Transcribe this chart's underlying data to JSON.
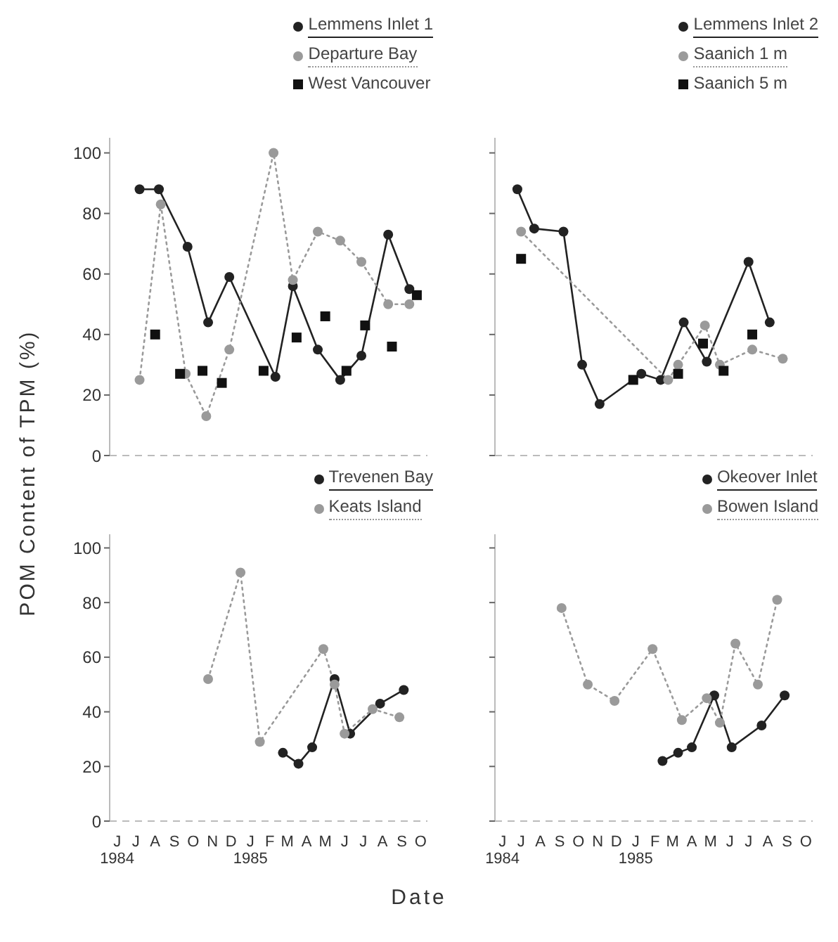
{
  "chart_data": [
    {
      "type": "line",
      "ylabel": "POM Content of TPM (%)",
      "xlim": [
        "1984-05-20",
        "1985-10-12"
      ],
      "ylim": [
        0,
        105
      ],
      "yticks": [
        0,
        20,
        40,
        60,
        80,
        100
      ],
      "tick_labels": "y",
      "legend": "top right",
      "grid": false,
      "series": [
        {
          "name": "Lemmens Inlet 1",
          "type": "line",
          "color": "#222222",
          "marker": "circle",
          "line_style": "solid",
          "x": [
            "1984-07-07",
            "1984-08-07",
            "1984-09-22",
            "1984-10-25",
            "1984-11-28",
            "1985-02-10",
            "1985-03-10",
            "1985-04-19",
            "1985-05-25",
            "1985-06-28",
            "1985-08-10",
            "1985-09-13"
          ],
          "values": [
            88,
            88,
            69,
            44,
            59,
            26,
            56,
            35,
            25,
            33,
            73,
            55
          ]
        },
        {
          "name": "Departure Bay",
          "type": "line",
          "color": "#9a9a9a",
          "marker": "circle",
          "line_style": "dotted",
          "x": [
            "1984-07-07",
            "1984-08-10",
            "1984-09-19",
            "1984-10-22",
            "1984-11-28",
            "1985-02-07",
            "1985-03-10",
            "1985-04-19",
            "1985-05-25",
            "1985-06-28",
            "1985-08-10",
            "1985-09-13"
          ],
          "values": [
            25,
            83,
            27,
            13,
            35,
            100,
            58,
            74,
            71,
            64,
            50,
            50
          ]
        },
        {
          "name": "West Vancouver",
          "type": "scatter",
          "color": "#111111",
          "marker": "square",
          "x": [
            "1984-08-01",
            "1984-09-10",
            "1984-10-16",
            "1984-11-16",
            "1985-01-22",
            "1985-03-16",
            "1985-05-01",
            "1985-06-04",
            "1985-07-04",
            "1985-08-16",
            "1985-09-25"
          ],
          "values": [
            40,
            27,
            28,
            24,
            28,
            39,
            46,
            28,
            43,
            36,
            53
          ]
        }
      ]
    },
    {
      "type": "line",
      "xlim": [
        "1984-05-20",
        "1985-10-12"
      ],
      "ylim": [
        0,
        105
      ],
      "yticks": [
        0,
        20,
        40,
        60,
        80,
        100
      ],
      "tick_labels": false,
      "legend": "top right",
      "grid": false,
      "series": [
        {
          "name": "Lemmens Inlet 2",
          "type": "line",
          "color": "#222222",
          "marker": "circle",
          "line_style": "solid",
          "x": [
            "1984-06-25",
            "1984-07-22",
            "1984-09-07",
            "1984-10-07",
            "1984-11-04",
            "1985-01-10",
            "1985-02-10",
            "1985-03-19",
            "1985-04-25",
            "1985-07-01",
            "1985-08-04"
          ],
          "values": [
            88,
            75,
            74,
            30,
            17,
            27,
            25,
            44,
            31,
            64,
            44
          ]
        },
        {
          "name": "Saanich 1 m",
          "type": "line",
          "color": "#9a9a9a",
          "marker": "circle",
          "line_style": "dotted",
          "x": [
            "1984-07-01",
            "1985-02-22",
            "1985-03-10",
            "1985-04-22",
            "1985-05-16",
            "1985-07-07",
            "1985-08-25"
          ],
          "values": [
            74,
            25,
            30,
            43,
            30,
            35,
            32
          ]
        },
        {
          "name": "Saanich 5 m",
          "type": "scatter",
          "color": "#111111",
          "marker": "square",
          "x": [
            "1984-07-01",
            "1984-12-28",
            "1985-03-10",
            "1985-04-19",
            "1985-05-22",
            "1985-07-07"
          ],
          "values": [
            65,
            25,
            27,
            37,
            28,
            40
          ]
        }
      ]
    },
    {
      "type": "line",
      "xlim": [
        "1984-05-20",
        "1985-10-12"
      ],
      "ylim": [
        0,
        105
      ],
      "yticks": [
        0,
        20,
        40,
        60,
        80,
        100
      ],
      "xticks": [
        {
          "value": "1984-06",
          "label": "J\n1984"
        },
        {
          "value": "1984-07",
          "label": "J"
        },
        {
          "value": "1984-08",
          "label": "A"
        },
        {
          "value": "1984-09",
          "label": "S"
        },
        {
          "value": "1984-10",
          "label": "O"
        },
        {
          "value": "1984-11",
          "label": "N"
        },
        {
          "value": "1984-12",
          "label": "D"
        },
        {
          "value": "1985-01",
          "label": "J\n1985"
        },
        {
          "value": "1985-02",
          "label": "F"
        },
        {
          "value": "1985-03",
          "label": "M"
        },
        {
          "value": "1985-04",
          "label": "A"
        },
        {
          "value": "1985-05",
          "label": "M"
        },
        {
          "value": "1985-06",
          "label": "J"
        },
        {
          "value": "1985-07",
          "label": "J"
        },
        {
          "value": "1985-08",
          "label": "A"
        },
        {
          "value": "1985-09",
          "label": "S"
        },
        {
          "value": "1985-10",
          "label": "O"
        }
      ],
      "legend": "top right",
      "grid": false,
      "series": [
        {
          "name": "Trevenen Bay",
          "type": "line",
          "color": "#222222",
          "marker": "circle",
          "line_style": "solid",
          "x": [
            "1985-02-22",
            "1985-03-19",
            "1985-04-10",
            "1985-05-16",
            "1985-06-10",
            "1985-07-28",
            "1985-09-04"
          ],
          "values": [
            25,
            21,
            27,
            52,
            32,
            43,
            48
          ]
        },
        {
          "name": "Keats Island",
          "type": "line",
          "color": "#9a9a9a",
          "marker": "circle",
          "line_style": "dotted",
          "x": [
            "1984-10-25",
            "1984-12-16",
            "1985-01-16",
            "1985-04-28",
            "1985-05-16",
            "1985-06-01",
            "1985-07-16",
            "1985-08-28"
          ],
          "values": [
            52,
            91,
            29,
            63,
            50,
            32,
            41,
            38
          ]
        }
      ]
    },
    {
      "type": "line",
      "xlabel": "Date",
      "xlim": [
        "1984-05-20",
        "1985-10-12"
      ],
      "ylim": [
        0,
        105
      ],
      "yticks": [
        0,
        20,
        40,
        60,
        80,
        100
      ],
      "xticks": [
        {
          "value": "1984-06",
          "label": "J\n1984"
        },
        {
          "value": "1984-07",
          "label": "J"
        },
        {
          "value": "1984-08",
          "label": "A"
        },
        {
          "value": "1984-09",
          "label": "S"
        },
        {
          "value": "1984-10",
          "label": "O"
        },
        {
          "value": "1984-11",
          "label": "N"
        },
        {
          "value": "1984-12",
          "label": "D"
        },
        {
          "value": "1985-01",
          "label": "J\n1985"
        },
        {
          "value": "1985-02",
          "label": "F"
        },
        {
          "value": "1985-03",
          "label": "M"
        },
        {
          "value": "1985-04",
          "label": "A"
        },
        {
          "value": "1985-05",
          "label": "M"
        },
        {
          "value": "1985-06",
          "label": "J"
        },
        {
          "value": "1985-07",
          "label": "J"
        },
        {
          "value": "1985-08",
          "label": "A"
        },
        {
          "value": "1985-09",
          "label": "S"
        },
        {
          "value": "1985-10",
          "label": "O"
        }
      ],
      "tick_labels": "x",
      "legend": "top right",
      "grid": false,
      "series": [
        {
          "name": "Okeover Inlet",
          "type": "line",
          "color": "#222222",
          "marker": "circle",
          "line_style": "solid",
          "x": [
            "1985-02-13",
            "1985-03-10",
            "1985-04-01",
            "1985-05-07",
            "1985-06-04",
            "1985-07-22",
            "1985-08-28"
          ],
          "values": [
            22,
            25,
            27,
            46,
            27,
            35,
            46
          ]
        },
        {
          "name": "Bowen Island",
          "type": "line",
          "color": "#9a9a9a",
          "marker": "circle",
          "line_style": "dotted",
          "x": [
            "1984-09-04",
            "1984-10-16",
            "1984-11-28",
            "1985-01-28",
            "1985-03-16",
            "1985-04-25",
            "1985-05-16",
            "1985-06-10",
            "1985-07-16",
            "1985-08-16"
          ],
          "values": [
            78,
            50,
            44,
            63,
            37,
            45,
            36,
            65,
            50,
            81
          ]
        }
      ]
    }
  ]
}
